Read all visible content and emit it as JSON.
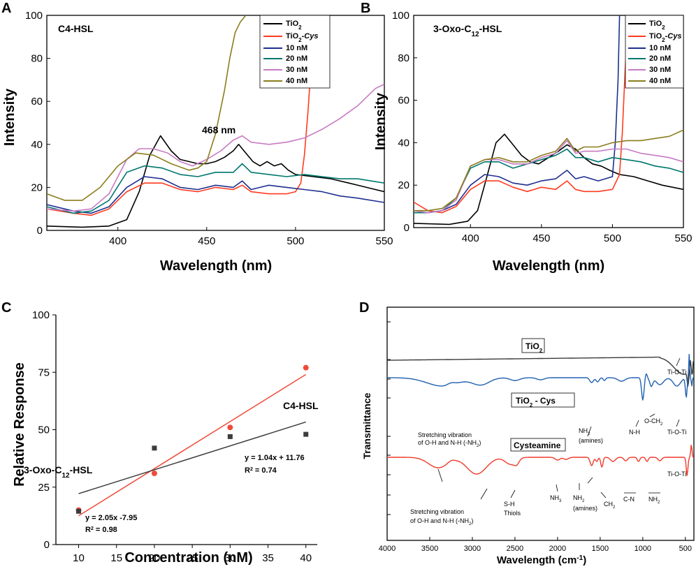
{
  "chart_data": [
    {
      "panel": "A",
      "type": "line",
      "title": "C4-HSL",
      "xlabel": "Wavelength (nm)",
      "ylabel": "Intensity",
      "xlim": [
        360,
        550
      ],
      "ylim": [
        0,
        100
      ],
      "xticks": [
        400,
        450,
        500,
        550
      ],
      "yticks": [
        0,
        20,
        40,
        60,
        80,
        100
      ],
      "annotations": [
        {
          "text": "468 nm",
          "x": 470,
          "y": 45
        }
      ],
      "legend": [
        "TiO2",
        "TiO2-Cys",
        "10 nM",
        "20 nM",
        "30 nM",
        "40 nM"
      ],
      "series": [
        {
          "name": "TiO2",
          "color": "#000000",
          "x": [
            360,
            380,
            395,
            405,
            412,
            418,
            424,
            430,
            435,
            440,
            445,
            450,
            455,
            460,
            465,
            468,
            472,
            476,
            480,
            484,
            488,
            492,
            496,
            500,
            510,
            520,
            530,
            540,
            550
          ],
          "y": [
            2,
            1.5,
            2,
            5,
            18,
            35,
            44,
            37,
            33,
            32,
            31,
            31,
            32,
            34,
            37,
            40,
            36,
            32,
            30,
            32,
            30,
            31,
            28,
            26,
            25,
            24,
            22,
            20,
            18
          ]
        },
        {
          "name": "TiO2-Cys",
          "color": "#ff3b1f",
          "x": [
            360,
            375,
            385,
            395,
            405,
            415,
            425,
            435,
            445,
            455,
            465,
            470,
            475,
            485,
            495,
            500,
            503,
            505,
            507,
            509,
            511
          ],
          "y": [
            10,
            8,
            7,
            10,
            18,
            22,
            22,
            19,
            18,
            20,
            19,
            21,
            18,
            17,
            17,
            18,
            22,
            35,
            55,
            80,
            100
          ]
        },
        {
          "name": "10 nM",
          "color": "#1f2f8f",
          "x": [
            360,
            375,
            385,
            395,
            405,
            415,
            425,
            435,
            445,
            455,
            465,
            470,
            475,
            485,
            495,
            505,
            515,
            525,
            535,
            550
          ],
          "y": [
            12,
            9,
            8,
            11,
            20,
            25,
            24,
            20,
            19,
            21,
            20,
            23,
            19,
            21,
            20,
            19,
            18,
            16,
            15,
            13
          ]
        },
        {
          "name": "20 nM",
          "color": "#00776d",
          "x": [
            360,
            375,
            385,
            395,
            405,
            415,
            425,
            435,
            445,
            455,
            465,
            470,
            475,
            485,
            495,
            505,
            515,
            525,
            535,
            550
          ],
          "y": [
            11,
            8,
            9,
            14,
            27,
            30,
            29,
            26,
            25,
            27,
            27,
            31,
            27,
            26,
            25,
            26,
            25,
            24,
            24,
            22
          ]
        },
        {
          "name": "30 nM",
          "color": "#c77bc3",
          "x": [
            360,
            375,
            385,
            395,
            405,
            412,
            420,
            428,
            435,
            442,
            450,
            458,
            465,
            470,
            475,
            485,
            495,
            505,
            515,
            525,
            535,
            545,
            550
          ],
          "y": [
            10,
            9,
            10,
            17,
            33,
            38,
            38,
            36,
            32,
            30,
            33,
            37,
            42,
            44,
            41,
            40,
            41,
            43,
            47,
            52,
            58,
            66,
            68
          ]
        },
        {
          "name": "40 nM",
          "color": "#8b7d1c",
          "x": [
            360,
            370,
            380,
            390,
            400,
            410,
            420,
            430,
            440,
            445,
            450,
            455,
            460,
            463,
            466,
            469,
            472
          ],
          "y": [
            17,
            14,
            14,
            20,
            30,
            36,
            35,
            31,
            28,
            29,
            32,
            45,
            65,
            80,
            92,
            97,
            100
          ]
        }
      ]
    },
    {
      "panel": "B",
      "type": "line",
      "title": "3-Oxo-C12-HSL",
      "xlabel": "Wavelength (nm)",
      "ylabel": "Intensity",
      "xlim": [
        360,
        550
      ],
      "ylim": [
        0,
        100
      ],
      "xticks": [
        400,
        450,
        500,
        550
      ],
      "yticks": [
        0,
        20,
        40,
        60,
        80,
        100
      ],
      "legend": [
        "TiO2",
        "TiO2-Cys",
        "10 nM",
        "20 nM",
        "30 nM",
        "40 nM"
      ],
      "series": [
        {
          "name": "TiO2",
          "color": "#000000",
          "x": [
            360,
            385,
            398,
            405,
            412,
            418,
            424,
            430,
            436,
            442,
            448,
            455,
            462,
            468,
            474,
            480,
            486,
            492,
            498,
            505,
            515,
            525,
            535,
            550
          ],
          "y": [
            2,
            1.5,
            3,
            8,
            25,
            40,
            44,
            39,
            34,
            31,
            30,
            33,
            36,
            39,
            37,
            33,
            30,
            29,
            27,
            25,
            24,
            22,
            20,
            18
          ]
        },
        {
          "name": "TiO2-Cys",
          "color": "#ff3b1f",
          "x": [
            360,
            370,
            380,
            390,
            400,
            410,
            420,
            430,
            440,
            450,
            460,
            468,
            474,
            480,
            490,
            500,
            505,
            507,
            509,
            511
          ],
          "y": [
            12,
            8,
            7,
            10,
            18,
            22,
            22,
            19,
            17,
            19,
            18,
            22,
            18,
            17,
            17,
            18,
            25,
            45,
            75,
            100
          ]
        },
        {
          "name": "10 nM",
          "color": "#1f2f8f",
          "x": [
            360,
            370,
            380,
            390,
            400,
            410,
            420,
            430,
            440,
            450,
            460,
            468,
            474,
            480,
            490,
            500,
            502,
            504,
            505
          ],
          "y": [
            7,
            7,
            8,
            11,
            20,
            25,
            24,
            21,
            20,
            22,
            23,
            27,
            23,
            24,
            22,
            24,
            40,
            70,
            100
          ]
        },
        {
          "name": "20 nM",
          "color": "#00776d",
          "x": [
            360,
            370,
            380,
            390,
            400,
            410,
            420,
            430,
            440,
            450,
            460,
            468,
            474,
            480,
            490,
            500,
            510,
            520,
            530,
            540,
            550
          ],
          "y": [
            7,
            7,
            8,
            14,
            28,
            31,
            31,
            28,
            30,
            32,
            34,
            37,
            33,
            33,
            31,
            33,
            32,
            31,
            29,
            28,
            26
          ]
        },
        {
          "name": "30 nM",
          "color": "#c77bc3",
          "x": [
            360,
            370,
            380,
            390,
            400,
            410,
            420,
            430,
            440,
            450,
            460,
            468,
            474,
            480,
            490,
            500,
            510,
            520,
            530,
            540,
            550
          ],
          "y": [
            8,
            7,
            8,
            13,
            29,
            32,
            32,
            30,
            30,
            33,
            35,
            41,
            35,
            36,
            36,
            37,
            37,
            35,
            34,
            33,
            31
          ]
        },
        {
          "name": "40 nM",
          "color": "#8b7d1c",
          "x": [
            360,
            370,
            380,
            390,
            400,
            410,
            420,
            430,
            440,
            450,
            460,
            468,
            474,
            480,
            490,
            500,
            510,
            520,
            530,
            540,
            550
          ],
          "y": [
            8,
            8,
            9,
            14,
            29,
            32,
            33,
            31,
            31,
            34,
            36,
            42,
            36,
            38,
            38,
            40,
            41,
            41,
            42,
            43,
            46
          ]
        }
      ]
    },
    {
      "panel": "C",
      "type": "scatter",
      "xlabel": "Concentration (nM)",
      "ylabel": "Relative Response",
      "xlim": [
        7,
        41.5
      ],
      "ylim": [
        0,
        100
      ],
      "xticks": [
        10,
        15,
        20,
        25,
        30,
        35,
        40
      ],
      "yticks": [
        0,
        25,
        50,
        75,
        100
      ],
      "series": [
        {
          "name": "C4-HSL",
          "color": "#f04a3a",
          "marker": "circle",
          "x": [
            10,
            20,
            30,
            40
          ],
          "y": [
            15,
            31,
            51,
            77
          ],
          "fit": {
            "slope": 2.05,
            "intercept": -7.95,
            "x": [
              10,
              40
            ]
          },
          "equation": "y = 2.05x -7.95",
          "r2": "0.98",
          "r2_label": "R",
          "r2_sup": "2",
          "r2_rest": " = 0.98"
        },
        {
          "name": "3-Oxo-C12-HSL",
          "color": "#3c3c3c",
          "marker": "square",
          "x": [
            10,
            20,
            30,
            40
          ],
          "y": [
            14.5,
            42,
            47,
            48
          ],
          "fit": {
            "slope": 1.04,
            "intercept": 11.76,
            "x": [
              10,
              40
            ]
          },
          "equation": "y = 1.04x + 11.76",
          "r2": "0.74",
          "r2_label": "R",
          "r2_sup": "2",
          "r2_rest": " = 0.74"
        }
      ]
    },
    {
      "panel": "D",
      "type": "line",
      "xlabel": "Wavelength (cm",
      "xlabel_sup": "-1",
      "xlabel_end": ")",
      "ylabel": "Transmittance",
      "xlim": [
        4000,
        400
      ],
      "xticks": [
        4000,
        3500,
        3000,
        2500,
        2000,
        1500,
        1000,
        500
      ],
      "series_labels": [
        "TiO2",
        "TiO2 - Cys",
        "Cysteamine"
      ],
      "annotations": [
        "Ti-O-Ti",
        "Stretching vibration",
        "of O-H and N-H (-NH2)",
        "NH2",
        "(amines)",
        "N-H",
        "O-CH2",
        "Ti-O-Ti",
        "Stretching vibration",
        "of O-H and N-H (-NH2)",
        "S-H",
        "Thiols",
        "NH3",
        "NH2",
        "(amines)",
        "CH2",
        "C-N",
        "NH2"
      ]
    }
  ],
  "colors": {
    "tio2": "#000000",
    "tio2_cys": "#ff3b1f",
    "c10": "#1f2f8f",
    "c20": "#00776d",
    "c30": "#c77bc3",
    "c40": "#8b7d1c",
    "ftir_tio2": "#3a3a3a",
    "ftir_cys": "#2060b0",
    "ftir_cysteamine": "#f03a2a",
    "c4_label": "#f04a3a",
    "oxo_label": "#555555"
  }
}
